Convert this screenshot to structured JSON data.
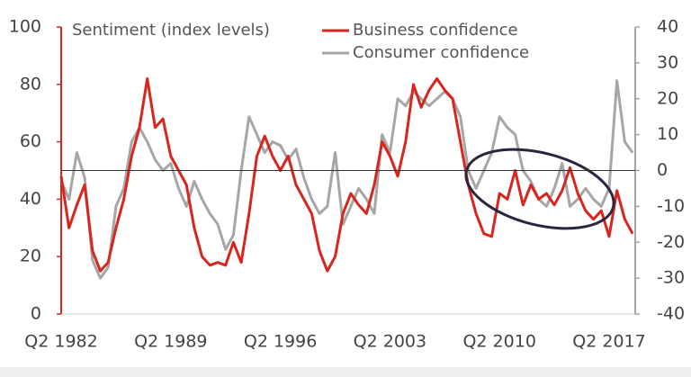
{
  "chart_data": {
    "type": "line",
    "title": "Sentiment (index levels)",
    "categories": [
      "Q2 1982",
      null,
      null,
      null,
      null,
      null,
      null,
      null,
      null,
      null,
      null,
      null,
      null,
      null,
      "Q2 1989",
      null,
      null,
      null,
      null,
      null,
      null,
      null,
      null,
      null,
      null,
      null,
      null,
      null,
      "Q2 1996",
      null,
      null,
      null,
      null,
      null,
      null,
      null,
      null,
      null,
      null,
      null,
      null,
      null,
      "Q2 2003",
      null,
      null,
      null,
      null,
      null,
      null,
      null,
      null,
      null,
      null,
      null,
      null,
      null,
      "Q2 2010",
      null,
      null,
      null,
      null,
      null,
      null,
      null,
      null,
      null,
      null,
      null,
      null,
      null,
      "Q2 2017",
      null,
      null,
      null
    ],
    "series": [
      {
        "name": "Business confidence",
        "color": "#d7261e",
        "axis": "y",
        "values": [
          48,
          30,
          38,
          45,
          22,
          15,
          18,
          30,
          40,
          55,
          65,
          82,
          65,
          68,
          55,
          50,
          45,
          30,
          20,
          17,
          18,
          17,
          25,
          18,
          35,
          55,
          62,
          55,
          50,
          55,
          45,
          40,
          35,
          22,
          15,
          20,
          35,
          42,
          38,
          35,
          45,
          60,
          55,
          48,
          60,
          80,
          72,
          78,
          82,
          78,
          75,
          60,
          45,
          35,
          28,
          27,
          42,
          40,
          50,
          38,
          45,
          40,
          42,
          38,
          43,
          51,
          42,
          36,
          33,
          36,
          27,
          43,
          33,
          28
        ]
      },
      {
        "name": "Consumer confidence",
        "color": "#a6a6a6",
        "axis": "y2",
        "values": [
          -3,
          -8,
          5,
          -2,
          -25,
          -30,
          -27,
          -10,
          -5,
          8,
          12,
          8,
          3,
          0,
          2,
          -5,
          -10,
          -3,
          -8,
          -12,
          -15,
          -22,
          -18,
          0,
          15,
          10,
          5,
          8,
          7,
          3,
          6,
          -2,
          -8,
          -12,
          -10,
          5,
          -15,
          -10,
          -5,
          -8,
          -12,
          10,
          5,
          20,
          18,
          22,
          20,
          18,
          20,
          22,
          20,
          15,
          0,
          -5,
          0,
          5,
          15,
          12,
          10,
          0,
          -3,
          -8,
          -10,
          -5,
          2,
          -10,
          -8,
          -5,
          -8,
          -10,
          -5,
          25,
          8,
          5
        ]
      }
    ],
    "ylim": [
      0,
      100
    ],
    "yticks": [
      0,
      20,
      40,
      60,
      80,
      100
    ],
    "y2lim": [
      -40,
      40
    ],
    "y2ticks": [
      -40,
      -30,
      -20,
      -10,
      0,
      10,
      20,
      30,
      40
    ],
    "reference_line_y2": 0
  }
}
